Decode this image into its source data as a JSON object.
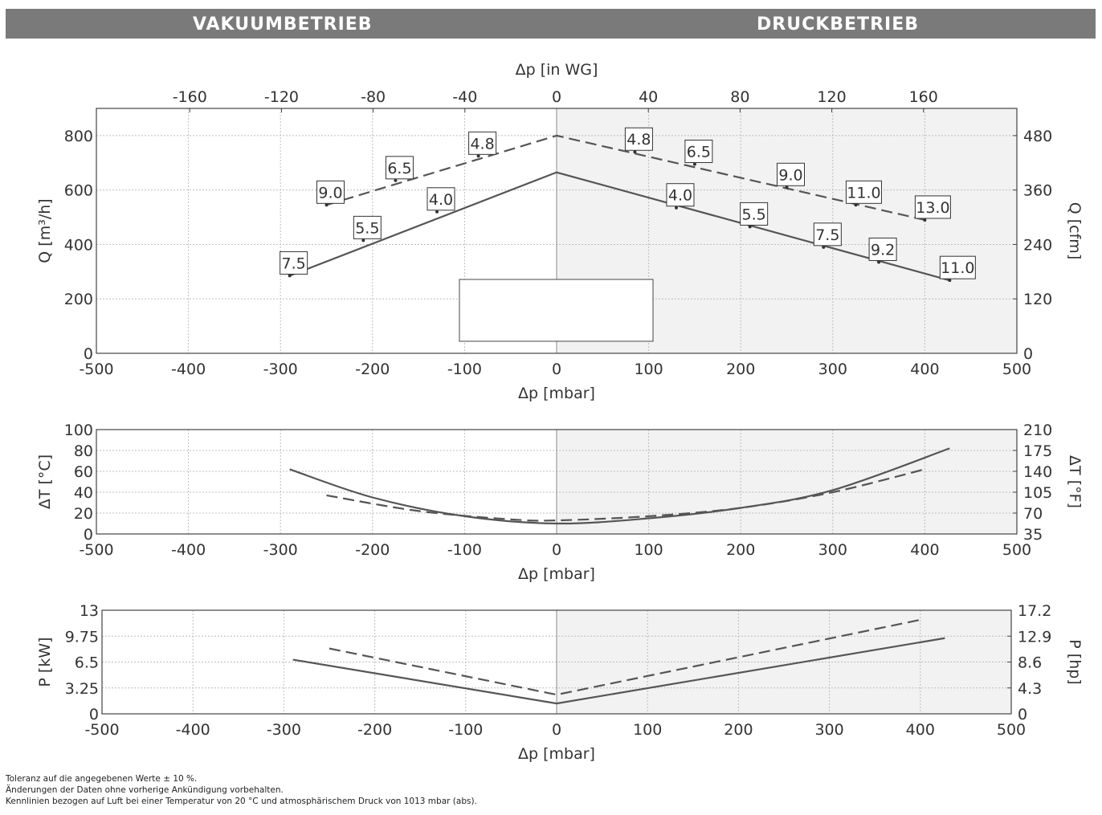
{
  "header": {
    "left_label": "VAKUUMBETRIEB",
    "right_label": "DRUCKBETRIEB"
  },
  "footnotes": [
    "Toleranz auf die angegebenen Werte ± 10 %.",
    "Änderungen der Daten ohne vorherige Ankündigung vorbehalten.",
    "Kennlinien bezogen auf Luft bei einer Temperatur von 20 °C und atmosphärischem Druck von 1013 mbar (abs)."
  ],
  "colors": {
    "banner": "#7a7a7a",
    "line": "#555555",
    "grid": "#bdbdbd",
    "plot_left": "#ffffff",
    "plot_right": "#f2f2f2"
  },
  "chart_data": [
    {
      "type": "line",
      "xlabel": "Δp [mbar]",
      "x2label": "Δp [in WG]",
      "ylabel": "Q [m³/h]",
      "y2label": "Q [cfm]",
      "xlim": [
        -500,
        500
      ],
      "ylim": [
        0,
        900
      ],
      "x_ticks": [
        -500,
        -400,
        -300,
        -200,
        -100,
        0,
        100,
        200,
        300,
        400,
        500
      ],
      "y_ticks": [
        0,
        200,
        400,
        600,
        800
      ],
      "x2_ticks": [
        "-160",
        "-120",
        "-80",
        "-40",
        "0",
        "40",
        "80",
        "120",
        "160"
      ],
      "x2_tick_values": [
        -160,
        -120,
        -80,
        -40,
        0,
        40,
        80,
        120,
        160
      ],
      "y2_ticks": [
        "0",
        "120",
        "240",
        "360",
        "480"
      ],
      "y2_tick_values": [
        0,
        120,
        240,
        360,
        480
      ],
      "grid": true,
      "series": [
        {
          "style": "solid",
          "x": [
            -290,
            0,
            427
          ],
          "y": [
            285,
            665,
            268
          ]
        },
        {
          "style": "dashed",
          "x": [
            -250,
            0,
            400
          ],
          "y": [
            545,
            800,
            490
          ]
        }
      ],
      "annotations": [
        {
          "text": "7.5",
          "x": -290,
          "y": 285
        },
        {
          "text": "5.5",
          "x": -210,
          "y": 415
        },
        {
          "text": "4.0",
          "x": -130,
          "y": 520
        },
        {
          "text": "9.0",
          "x": -250,
          "y": 545
        },
        {
          "text": "6.5",
          "x": -175,
          "y": 635
        },
        {
          "text": "4.8",
          "x": -85,
          "y": 725
        },
        {
          "text": "4.8",
          "x": 85,
          "y": 740
        },
        {
          "text": "6.5",
          "x": 150,
          "y": 695
        },
        {
          "text": "9.0",
          "x": 250,
          "y": 610
        },
        {
          "text": "11.0",
          "x": 325,
          "y": 545
        },
        {
          "text": "13.0",
          "x": 400,
          "y": 490
        },
        {
          "text": "4.0",
          "x": 130,
          "y": 535
        },
        {
          "text": "5.5",
          "x": 210,
          "y": 465
        },
        {
          "text": "7.5",
          "x": 290,
          "y": 390
        },
        {
          "text": "9.2",
          "x": 350,
          "y": 335
        },
        {
          "text": "11.0",
          "x": 427,
          "y": 268
        }
      ]
    },
    {
      "type": "line",
      "xlabel": "Δp [mbar]",
      "ylabel": "ΔT [°C]",
      "y2label": "ΔT [°F]",
      "xlim": [
        -500,
        500
      ],
      "ylim": [
        0,
        100
      ],
      "x_ticks": [
        -500,
        -400,
        -300,
        -200,
        -100,
        0,
        100,
        200,
        300,
        400,
        500
      ],
      "y_ticks": [
        0,
        20,
        40,
        60,
        80,
        100
      ],
      "y2_ticks": [
        "35",
        "70",
        "105",
        "140",
        "175",
        "210"
      ],
      "y2_tick_values": [
        35,
        70,
        105,
        140,
        175,
        210
      ],
      "grid": true,
      "series": [
        {
          "style": "solid",
          "x": [
            -290,
            -200,
            -100,
            0,
            100,
            200,
            300,
            427
          ],
          "y": [
            62,
            35,
            17,
            10,
            15,
            25,
            42,
            82
          ]
        },
        {
          "style": "dashed",
          "x": [
            -250,
            -150,
            -50,
            0,
            100,
            200,
            300,
            400
          ],
          "y": [
            37,
            22,
            14,
            13,
            17,
            25,
            40,
            62
          ]
        }
      ]
    },
    {
      "type": "line",
      "xlabel": "Δp [mbar]",
      "ylabel": "P [kW]",
      "y2label": "P [hp]",
      "xlim": [
        -500,
        500
      ],
      "ylim": [
        0,
        13
      ],
      "x_ticks": [
        -500,
        -400,
        -300,
        -200,
        -100,
        0,
        100,
        200,
        300,
        400,
        500
      ],
      "y_ticks": [
        "0",
        "3.25",
        "6.5",
        "9.75",
        "13"
      ],
      "y_tick_values": [
        0,
        3.25,
        6.5,
        9.75,
        13
      ],
      "y2_ticks": [
        "0",
        "4.3",
        "8.6",
        "12.9",
        "17.2"
      ],
      "y2_tick_values": [
        0,
        4.3,
        8.6,
        12.9,
        17.2
      ],
      "grid": true,
      "series": [
        {
          "style": "solid",
          "x": [
            -290,
            0,
            427
          ],
          "y": [
            6.8,
            1.3,
            9.5
          ]
        },
        {
          "style": "dashed",
          "x": [
            -250,
            0,
            400
          ],
          "y": [
            8.2,
            2.4,
            11.8
          ]
        }
      ]
    }
  ]
}
